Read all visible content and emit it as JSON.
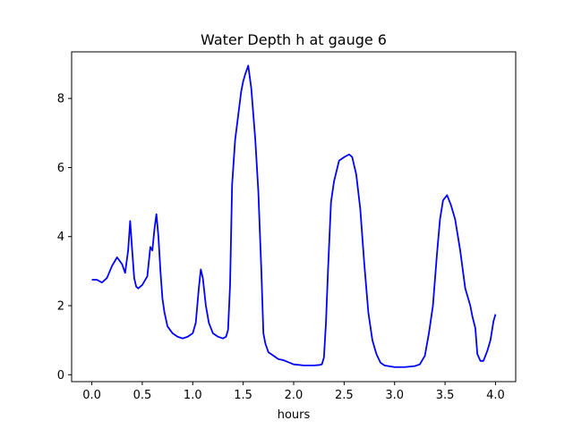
{
  "chart_data": {
    "type": "line",
    "title": "Water Depth h at gauge 6",
    "xlabel": "hours",
    "ylabel": "",
    "xlim": [
      -0.2,
      4.2
    ],
    "ylim": [
      -0.2,
      9.35
    ],
    "xticks": [
      0.0,
      0.5,
      1.0,
      1.5,
      2.0,
      2.5,
      3.0,
      3.5,
      4.0
    ],
    "xtick_labels": [
      "0.0",
      "0.5",
      "1.0",
      "1.5",
      "2.0",
      "2.5",
      "3.0",
      "3.5",
      "4.0"
    ],
    "yticks": [
      0,
      2,
      4,
      6,
      8
    ],
    "ytick_labels": [
      "0",
      "2",
      "4",
      "6",
      "8"
    ],
    "grid": false,
    "line_color": "#0000ff",
    "series": [
      {
        "x": [
          0.0,
          0.05,
          0.1,
          0.15,
          0.2,
          0.25,
          0.3,
          0.33,
          0.36,
          0.38,
          0.4,
          0.42,
          0.44,
          0.46,
          0.5,
          0.55,
          0.58,
          0.6,
          0.62,
          0.64,
          0.66,
          0.68,
          0.7,
          0.72,
          0.75,
          0.8,
          0.85,
          0.9,
          0.95,
          1.0,
          1.03,
          1.06,
          1.08,
          1.1,
          1.13,
          1.16,
          1.2,
          1.25,
          1.3,
          1.33,
          1.35,
          1.37,
          1.39,
          1.42,
          1.45,
          1.48,
          1.5,
          1.52,
          1.55,
          1.58,
          1.62,
          1.65,
          1.68,
          1.7,
          1.72,
          1.75,
          1.8,
          1.85,
          1.9,
          2.0,
          2.1,
          2.2,
          2.25,
          2.28,
          2.3,
          2.32,
          2.34,
          2.37,
          2.4,
          2.45,
          2.5,
          2.55,
          2.58,
          2.62,
          2.66,
          2.7,
          2.74,
          2.78,
          2.82,
          2.86,
          2.9,
          3.0,
          3.1,
          3.2,
          3.25,
          3.3,
          3.34,
          3.38,
          3.42,
          3.45,
          3.48,
          3.52,
          3.56,
          3.6,
          3.65,
          3.7,
          3.75,
          3.77,
          3.8,
          3.82,
          3.85,
          3.88,
          3.92,
          3.95,
          3.98,
          4.0
        ],
        "values": [
          2.75,
          2.75,
          2.67,
          2.8,
          3.15,
          3.4,
          3.2,
          2.95,
          3.6,
          4.45,
          3.6,
          2.8,
          2.55,
          2.5,
          2.6,
          2.85,
          3.7,
          3.6,
          4.2,
          4.65,
          4.0,
          3.0,
          2.2,
          1.8,
          1.4,
          1.2,
          1.1,
          1.05,
          1.1,
          1.2,
          1.5,
          2.5,
          3.05,
          2.8,
          2.0,
          1.5,
          1.2,
          1.1,
          1.05,
          1.1,
          1.3,
          2.6,
          5.5,
          6.8,
          7.5,
          8.2,
          8.5,
          8.7,
          8.95,
          8.3,
          6.8,
          5.3,
          3.0,
          1.2,
          0.9,
          0.65,
          0.55,
          0.45,
          0.42,
          0.3,
          0.27,
          0.27,
          0.28,
          0.3,
          0.5,
          1.5,
          3.0,
          5.0,
          5.6,
          6.2,
          6.3,
          6.38,
          6.3,
          5.8,
          4.8,
          3.2,
          1.8,
          1.0,
          0.6,
          0.35,
          0.27,
          0.22,
          0.22,
          0.25,
          0.3,
          0.55,
          1.2,
          2.0,
          3.5,
          4.5,
          5.05,
          5.2,
          4.9,
          4.5,
          3.6,
          2.5,
          2.0,
          1.7,
          1.35,
          0.6,
          0.4,
          0.4,
          0.7,
          1.0,
          1.55,
          1.75
        ]
      }
    ]
  }
}
